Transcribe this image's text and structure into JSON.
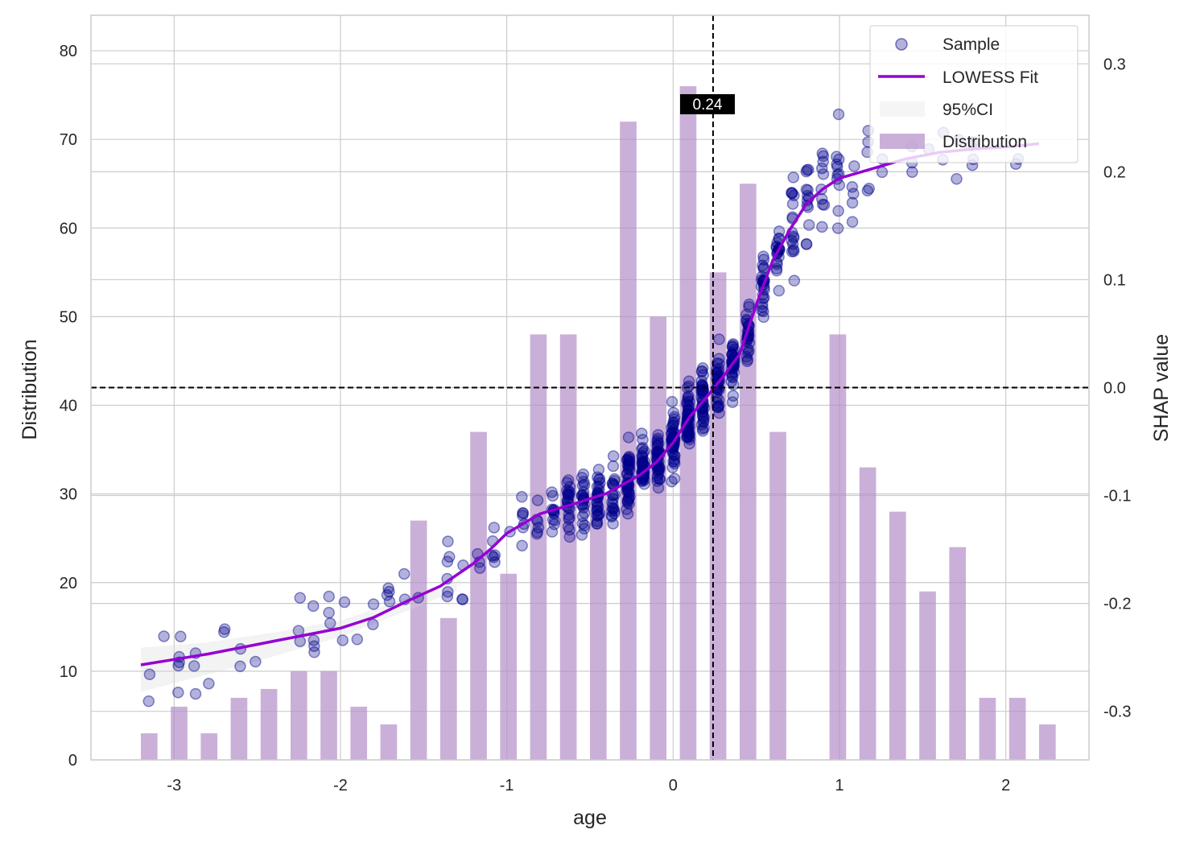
{
  "chart_data": {
    "type": "scatter",
    "title": "",
    "xlabel": "age",
    "ylabel_left": "Distribution",
    "ylabel_right": "SHAP value",
    "xlim": [
      -3.5,
      2.5
    ],
    "ylim_left": [
      0,
      84
    ],
    "ylim_right": [
      -0.345,
      0.345
    ],
    "x_ticks": [
      -3,
      -2,
      -1,
      0,
      1,
      2
    ],
    "x_tick_labels": [
      "-3",
      "-2",
      "-1",
      "0",
      "1",
      "2"
    ],
    "y_left_ticks": [
      0,
      10,
      20,
      30,
      40,
      50,
      60,
      70,
      80
    ],
    "y_left_tick_labels": [
      "0",
      "10",
      "20",
      "30",
      "40",
      "50",
      "60",
      "70",
      "80"
    ],
    "y_right_ticks": [
      -0.3,
      -0.2,
      -0.1,
      0.0,
      0.1,
      0.2,
      0.3
    ],
    "y_right_tick_labels": [
      "-0.3",
      "-0.2",
      "-0.1",
      "0.0",
      "0.1",
      "0.2",
      "0.3"
    ],
    "grid": true,
    "legend_position": "top-right",
    "legend": [
      "Sample",
      "LOWESS Fit",
      "95%CI",
      "Distribution"
    ],
    "vline_x": 0.24,
    "vline_label": "0.24",
    "hline_shap": 0.0,
    "colors": {
      "sample": "#00008b",
      "lowess": "#9400d3",
      "distribution": "#b38ec8",
      "ci": "#d8d8d8",
      "grid": "#cccccc",
      "ref_lines": "#000000"
    },
    "distribution": {
      "bin_centers": [
        -3.15,
        -2.97,
        -2.79,
        -2.61,
        -2.43,
        -2.25,
        -2.07,
        -1.89,
        -1.71,
        -1.53,
        -1.35,
        -1.17,
        -0.99,
        -0.81,
        -0.63,
        -0.45,
        -0.27,
        -0.09,
        0.09,
        0.27,
        0.45,
        0.63,
        0.81,
        0.99,
        1.17,
        1.35,
        1.53,
        1.71,
        1.89,
        2.07
      ],
      "counts": [
        3,
        6,
        3,
        7,
        8,
        10,
        10,
        6,
        4,
        27,
        16,
        37,
        21,
        48,
        48,
        30,
        72,
        50,
        76,
        55,
        65,
        37,
        0,
        48,
        33,
        28,
        19,
        24,
        7,
        7
      ],
      "extra_bins": {
        "centers": [
          2.25
        ],
        "counts": [
          4
        ]
      }
    },
    "lowess_fit": {
      "x": [
        -3.2,
        -3.0,
        -2.8,
        -2.6,
        -2.4,
        -2.2,
        -2.0,
        -1.8,
        -1.6,
        -1.4,
        -1.2,
        -1.1,
        -1.0,
        -0.8,
        -0.6,
        -0.4,
        -0.2,
        -0.1,
        0.0,
        0.1,
        0.2,
        0.3,
        0.4,
        0.5,
        0.6,
        0.7,
        0.8,
        0.9,
        1.0,
        1.2,
        1.4,
        1.6,
        1.8,
        2.0,
        2.2
      ],
      "shap": [
        -0.257,
        -0.252,
        -0.247,
        -0.241,
        -0.235,
        -0.229,
        -0.223,
        -0.213,
        -0.198,
        -0.184,
        -0.163,
        -0.15,
        -0.135,
        -0.117,
        -0.108,
        -0.098,
        -0.081,
        -0.069,
        -0.051,
        -0.027,
        -0.009,
        0.01,
        0.031,
        0.077,
        0.118,
        0.146,
        0.17,
        0.184,
        0.194,
        0.203,
        0.212,
        0.218,
        0.221,
        0.223,
        0.226
      ]
    },
    "ci_band": {
      "x": [
        -3.2,
        -2.8,
        -2.4,
        -2.0,
        -1.6,
        -1.3
      ],
      "lower": [
        -0.282,
        -0.266,
        -0.249,
        -0.231,
        -0.207,
        -0.188
      ],
      "upper": [
        -0.241,
        -0.236,
        -0.227,
        -0.216,
        -0.195,
        -0.18
      ]
    },
    "samples": {
      "count_estimate": 650,
      "note": "points scattered around the LOWESS curve, spread about ±0.03 SHAP, x from -3.2 to 2.2"
    }
  }
}
